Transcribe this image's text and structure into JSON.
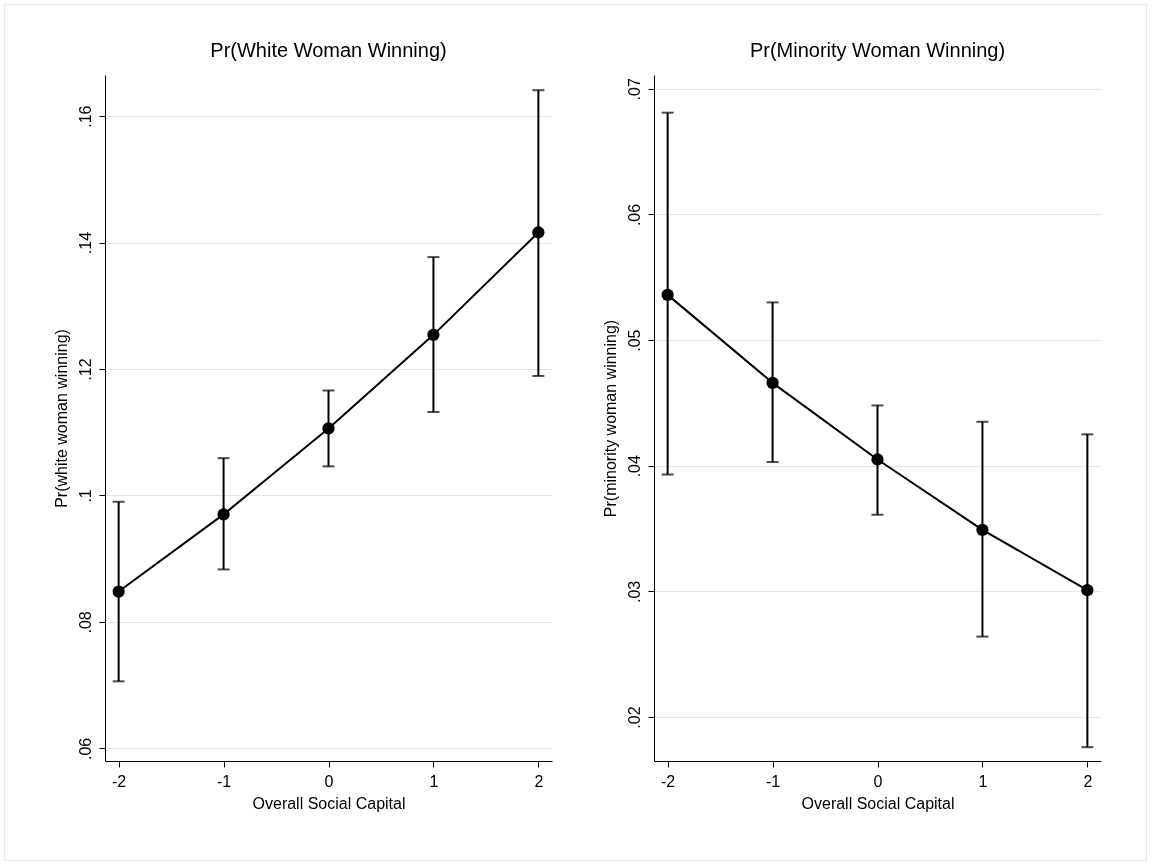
{
  "chart_data": [
    {
      "type": "line",
      "title": "Pr(White Woman Winning)",
      "xlabel": "Overall Social Capital",
      "ylabel": "Pr(white woman winning)",
      "x": [
        -2,
        -1,
        0,
        1,
        2
      ],
      "xlim": [
        -2.13,
        2.13
      ],
      "xticks": [
        -2,
        -1,
        0,
        1,
        2
      ],
      "ylim": [
        0.058,
        0.1665
      ],
      "yticks": [
        {
          "value": 0.06,
          "label": ".06"
        },
        {
          "value": 0.08,
          "label": ".08"
        },
        {
          "value": 0.1,
          "label": ".1"
        },
        {
          "value": 0.12,
          "label": ".12"
        },
        {
          "value": 0.14,
          "label": ".14"
        },
        {
          "value": 0.16,
          "label": ".16"
        }
      ],
      "grid": "y",
      "marker": "circle",
      "line_style": "solid",
      "series": [
        {
          "color": "#000000",
          "values": [
            0.0848,
            0.097,
            0.1106,
            0.1254,
            0.1416
          ],
          "errors": [
            [
              0.0706,
              0.099
            ],
            [
              0.0883,
              0.1059
            ],
            [
              0.1046,
              0.1166
            ],
            [
              0.1132,
              0.1377
            ],
            [
              0.1189,
              0.1641
            ]
          ]
        }
      ]
    },
    {
      "type": "line",
      "title": "Pr(Minority Woman Winning)",
      "xlabel": "Overall Social Capital",
      "ylabel": "Pr(minority woman winning)",
      "x": [
        -2,
        -1,
        0,
        1,
        2
      ],
      "xlim": [
        -2.13,
        2.13
      ],
      "xticks": [
        -2,
        -1,
        0,
        1,
        2
      ],
      "ylim": [
        0.0165,
        0.0711
      ],
      "yticks": [
        {
          "value": 0.02,
          "label": ".02"
        },
        {
          "value": 0.03,
          "label": ".03"
        },
        {
          "value": 0.04,
          "label": ".04"
        },
        {
          "value": 0.05,
          "label": ".05"
        },
        {
          "value": 0.06,
          "label": ".06"
        },
        {
          "value": 0.07,
          "label": ".07"
        }
      ],
      "grid": "y",
      "marker": "circle",
      "line_style": "solid",
      "series": [
        {
          "color": "#000000",
          "values": [
            0.0536,
            0.0466,
            0.0405,
            0.0349,
            0.0301
          ],
          "errors": [
            [
              0.0393,
              0.0681
            ],
            [
              0.0403,
              0.053
            ],
            [
              0.0361,
              0.0448
            ],
            [
              0.0264,
              0.0435
            ],
            [
              0.0176,
              0.0425
            ]
          ]
        }
      ]
    }
  ]
}
